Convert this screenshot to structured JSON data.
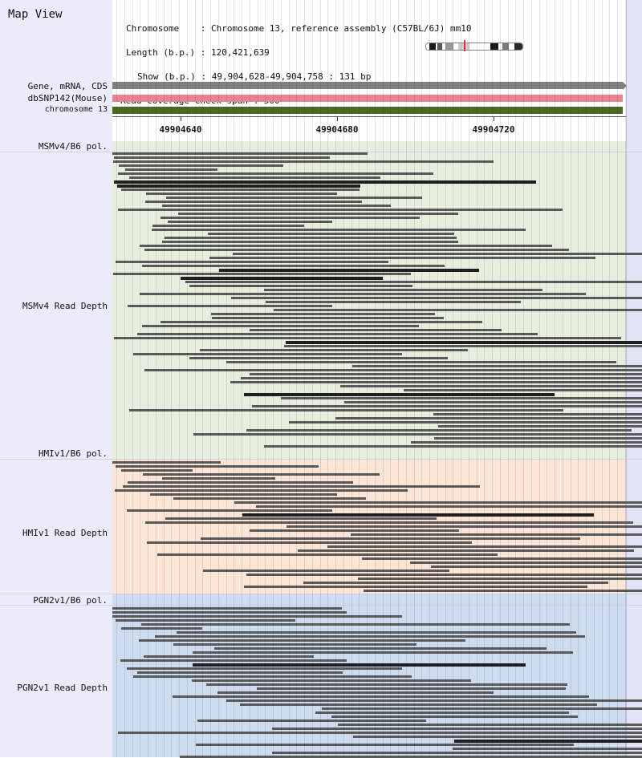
{
  "app": {
    "title": "Map View"
  },
  "info": {
    "chromosome_line": "Chromosome    : Chromosome 13, reference assembly (C57BL/6J) mm10",
    "length_line": "Length (b.p.) : 120,421,639",
    "show_line": "Show (b.p.) : 49,904,628-49,904,758 : 131 bp",
    "coverage_line": "Read coverage check span : 500"
  },
  "tracks": {
    "gene_label": "Gene, mRNA, CDS",
    "snp_label": "dbSNP142(Mouse)",
    "chrom_label": "chromosome 13",
    "gene_color": "#808080",
    "snp_color": "#e8838f",
    "chrom_color": "#4a6a22"
  },
  "ruler": {
    "ticks": [
      "49904640",
      "49904680",
      "49904720"
    ]
  },
  "sections": [
    {
      "pol_label": "MSMv4/B6 pol.",
      "depth_label": "MSMv4 Read Depth",
      "color": "#e8eedd"
    },
    {
      "pol_label": "HMIv1/B6 pol.",
      "depth_label": "HMIv1 Read Depth",
      "color": "#fbe5d6"
    },
    {
      "pol_label": "PGN2v1/B6 pol.",
      "depth_label": "PGN2v1 Read Depth",
      "color": "#cedcf0"
    }
  ],
  "ideogram": {
    "band_colors": [
      "#1a1a1a",
      "#5a5a5a",
      "#9a9a9a",
      "#cfcfcf",
      "#1a1a1a",
      "#7a7a7a",
      "#2a2a2a"
    ],
    "highlight_color": "#dd3333"
  }
}
